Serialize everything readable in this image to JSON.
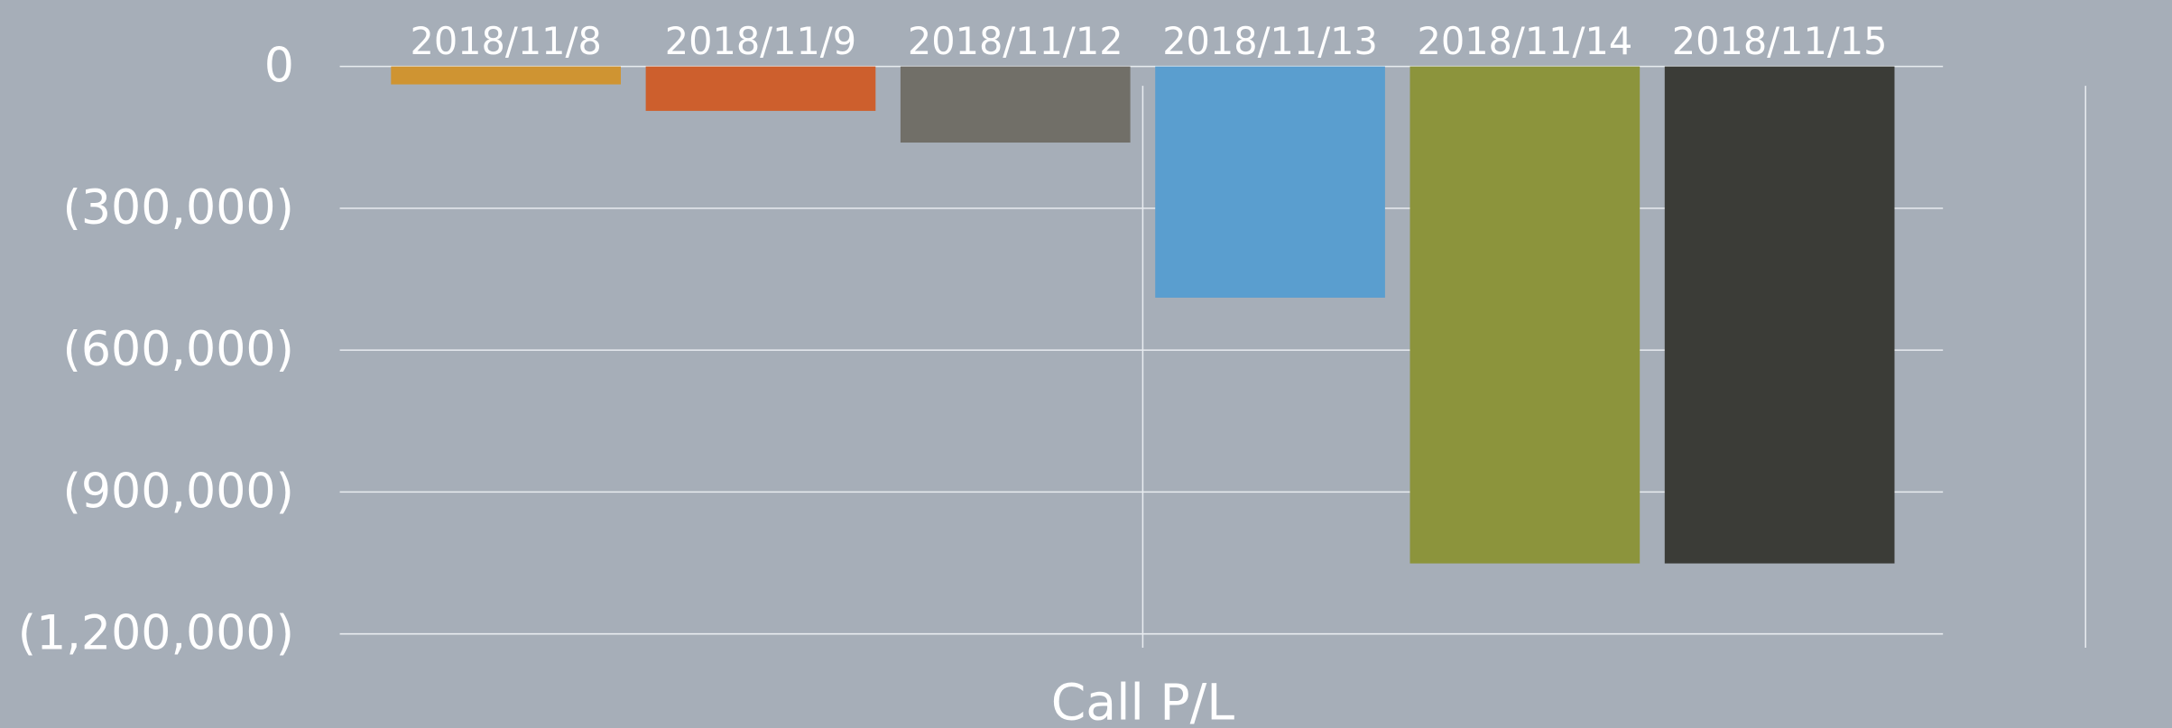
{
  "chart_data": {
    "type": "bar",
    "x_label": "Call P/L",
    "categories": [
      "2018/11/8",
      "2018/11/9",
      "2018/11/12",
      "2018/11/13",
      "2018/11/14",
      "2018/11/15"
    ],
    "values": [
      -38000,
      -94000,
      -161000,
      -489000,
      -1051000,
      -1051000
    ],
    "colors": [
      "#cf9432",
      "#cd5f2d",
      "#716f68",
      "#5a9ecf",
      "#8c943c",
      "#3b3c37"
    ],
    "ylim": [
      -1200000,
      0
    ],
    "yticks": [
      0,
      {
        "value": -300000,
        "label": "(300,000)"
      },
      {
        "value": -600000,
        "label": "(600,000)"
      },
      {
        "value": -900000,
        "label": "(900,000)"
      },
      {
        "value": -1200000,
        "label": "(1,200,000)"
      }
    ],
    "grid": true
  }
}
